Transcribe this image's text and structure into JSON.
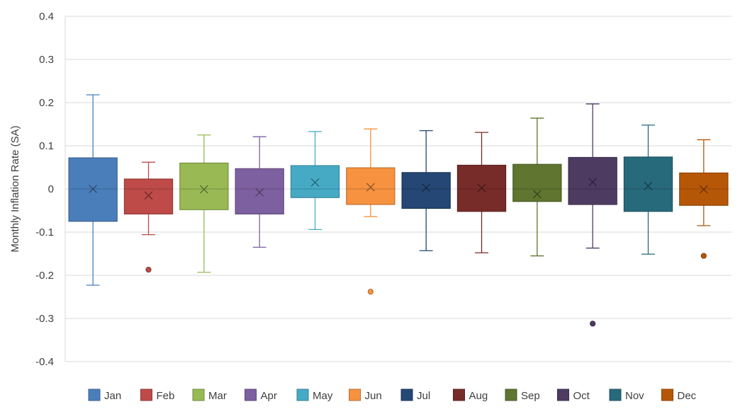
{
  "chart_data": {
    "type": "box",
    "ylabel": "Monthly Inflation Rate (SA)",
    "ylim": [
      -0.4,
      0.4
    ],
    "yticks": [
      0.4,
      0.3,
      0.2,
      0.1,
      0,
      -0.1,
      -0.2,
      -0.3,
      -0.4
    ],
    "ytick_labels": [
      "0.4",
      "0.3",
      "0.2",
      "0.1",
      "0",
      "-0.1",
      "-0.2",
      "-0.3",
      "-0.4"
    ],
    "grid": true,
    "legend_position": "bottom",
    "series": [
      {
        "name": "Jan",
        "color": "#4a7ebb",
        "min": -0.223,
        "q1": -0.075,
        "median": 0.0,
        "q3": 0.072,
        "max": 0.218,
        "mean": 0.0,
        "outliers": []
      },
      {
        "name": "Feb",
        "color": "#be4b48",
        "min": -0.106,
        "q1": -0.058,
        "median": 0.0,
        "q3": 0.023,
        "max": 0.062,
        "mean": -0.015,
        "outliers": [
          -0.187
        ]
      },
      {
        "name": "Mar",
        "color": "#98b954",
        "min": -0.193,
        "q1": -0.048,
        "median": 0.0,
        "q3": 0.06,
        "max": 0.125,
        "mean": -0.001,
        "outliers": []
      },
      {
        "name": "Apr",
        "color": "#7d60a0",
        "min": -0.135,
        "q1": -0.058,
        "median": 0.0,
        "q3": 0.047,
        "max": 0.121,
        "mean": -0.008,
        "outliers": []
      },
      {
        "name": "May",
        "color": "#46aac5",
        "min": -0.094,
        "q1": -0.02,
        "median": 0.0,
        "q3": 0.054,
        "max": 0.133,
        "mean": 0.015,
        "outliers": []
      },
      {
        "name": "Jun",
        "color": "#f69240",
        "min": -0.064,
        "q1": -0.036,
        "median": 0.0,
        "q3": 0.049,
        "max": 0.139,
        "mean": 0.004,
        "outliers": [
          -0.238
        ]
      },
      {
        "name": "Jul",
        "color": "#254775",
        "min": -0.143,
        "q1": -0.045,
        "median": 0.0,
        "q3": 0.038,
        "max": 0.135,
        "mean": 0.003,
        "outliers": []
      },
      {
        "name": "Aug",
        "color": "#772c2a",
        "min": -0.148,
        "q1": -0.052,
        "median": 0.0,
        "q3": 0.055,
        "max": 0.131,
        "mean": 0.002,
        "outliers": []
      },
      {
        "name": "Sep",
        "color": "#5f7530",
        "min": -0.155,
        "q1": -0.029,
        "median": 0.0,
        "q3": 0.057,
        "max": 0.164,
        "mean": -0.012,
        "outliers": []
      },
      {
        "name": "Oct",
        "color": "#4d3b62",
        "min": -0.137,
        "q1": -0.036,
        "median": 0.0,
        "q3": 0.073,
        "max": 0.197,
        "mean": 0.016,
        "outliers": [
          -0.312
        ]
      },
      {
        "name": "Nov",
        "color": "#276a7c",
        "min": -0.151,
        "q1": -0.052,
        "median": 0.0,
        "q3": 0.074,
        "max": 0.148,
        "mean": 0.007,
        "outliers": []
      },
      {
        "name": "Dec",
        "color": "#b65708",
        "min": -0.085,
        "q1": -0.038,
        "median": 0.0,
        "q3": 0.037,
        "max": 0.114,
        "mean": -0.001,
        "outliers": [
          -0.155
        ]
      }
    ]
  }
}
